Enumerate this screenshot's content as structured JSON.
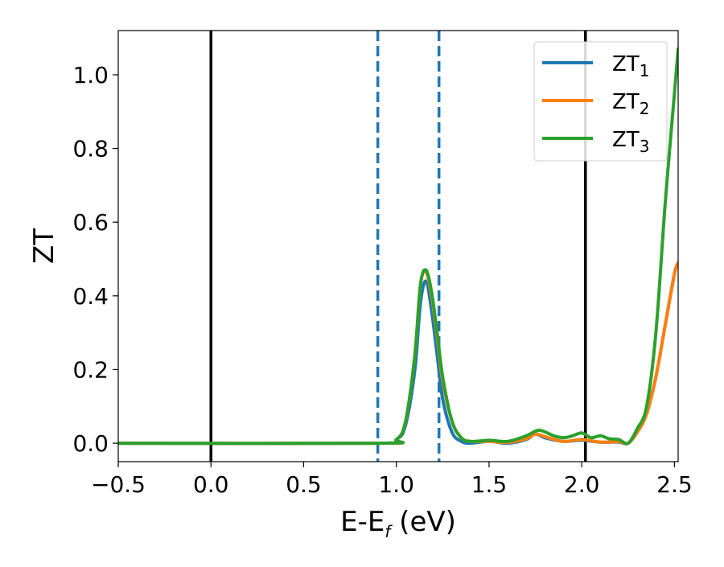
{
  "chart_data": {
    "type": "line",
    "xlabel": "E-E_f (eV)",
    "xlabel_parts": {
      "main": "E-E",
      "sub": "f",
      "rest": " (eV)"
    },
    "ylabel": "ZT",
    "xlim": [
      -0.5,
      2.52
    ],
    "ylim": [
      -0.05,
      1.12
    ],
    "xticks": [
      -0.5,
      0.0,
      0.5,
      1.0,
      1.5,
      2.0,
      2.5
    ],
    "xtick_labels": [
      "−0.5",
      "0.0",
      "0.5",
      "1.0",
      "1.5",
      "2.0",
      "2.5"
    ],
    "yticks": [
      0.0,
      0.2,
      0.4,
      0.6,
      0.8,
      1.0
    ],
    "ytick_labels": [
      "0.0",
      "0.2",
      "0.4",
      "0.6",
      "0.8",
      "1.0"
    ],
    "grid": false,
    "legend_position": "top-right",
    "vlines": [
      {
        "x": 0.0,
        "style": "solid",
        "color": "#000000"
      },
      {
        "x": 2.02,
        "style": "solid",
        "color": "#000000"
      },
      {
        "x": 0.9,
        "style": "dashed",
        "color": "#1f77b4"
      },
      {
        "x": 1.23,
        "style": "dashed",
        "color": "#1f77b4"
      }
    ],
    "series": [
      {
        "name": "ZT_1",
        "label_main": "ZT",
        "label_sub": "1",
        "color": "#1f77b4",
        "x": [
          -0.5,
          0.9,
          1.0,
          1.05,
          1.1,
          1.13,
          1.16,
          1.19,
          1.22,
          1.25,
          1.3,
          1.35,
          1.4,
          1.5,
          1.6,
          1.7,
          1.75,
          1.8,
          1.9,
          2.0,
          2.1,
          2.2,
          2.25,
          2.3,
          2.35,
          2.4,
          2.45,
          2.5,
          2.52
        ],
        "y": [
          0.0,
          0.0,
          0.01,
          0.05,
          0.2,
          0.38,
          0.44,
          0.36,
          0.24,
          0.12,
          0.03,
          0.005,
          0.0,
          0.005,
          0.0,
          0.01,
          0.025,
          0.015,
          0.005,
          0.008,
          0.003,
          0.003,
          0.0,
          0.03,
          0.08,
          0.18,
          0.32,
          0.46,
          0.49
        ]
      },
      {
        "name": "ZT_2",
        "label_main": "ZT",
        "label_sub": "2",
        "color": "#ff7f0e",
        "x": [
          -0.5,
          0.9,
          1.0,
          1.05,
          1.1,
          1.13,
          1.16,
          1.19,
          1.22,
          1.25,
          1.3,
          1.35,
          1.4,
          1.5,
          1.6,
          1.7,
          1.75,
          1.8,
          1.9,
          2.0,
          2.1,
          2.2,
          2.25,
          2.3,
          2.35,
          2.4,
          2.45,
          2.5,
          2.52
        ],
        "y": [
          0.0,
          0.0,
          0.01,
          0.06,
          0.24,
          0.43,
          0.465,
          0.4,
          0.29,
          0.17,
          0.06,
          0.015,
          0.005,
          0.005,
          0.002,
          0.012,
          0.025,
          0.018,
          0.005,
          0.01,
          0.003,
          0.004,
          0.0,
          0.03,
          0.08,
          0.18,
          0.32,
          0.46,
          0.49
        ]
      },
      {
        "name": "ZT_3",
        "label_main": "ZT",
        "label_sub": "3",
        "color": "#2ca02c",
        "x": [
          -0.5,
          0.9,
          1.0,
          1.05,
          1.1,
          1.13,
          1.16,
          1.19,
          1.22,
          1.25,
          1.3,
          1.35,
          1.4,
          1.5,
          1.6,
          1.7,
          1.77,
          1.85,
          1.9,
          1.95,
          2.0,
          2.05,
          2.1,
          2.15,
          2.2,
          2.25,
          2.3,
          2.35,
          2.4,
          2.45,
          2.5,
          2.52
        ],
        "y": [
          0.0,
          0.0,
          0.01,
          0.06,
          0.24,
          0.43,
          0.47,
          0.41,
          0.3,
          0.18,
          0.06,
          0.015,
          0.005,
          0.008,
          0.005,
          0.02,
          0.035,
          0.02,
          0.015,
          0.02,
          0.028,
          0.015,
          0.02,
          0.012,
          0.01,
          0.0,
          0.04,
          0.1,
          0.3,
          0.65,
          0.95,
          1.07
        ]
      }
    ]
  }
}
